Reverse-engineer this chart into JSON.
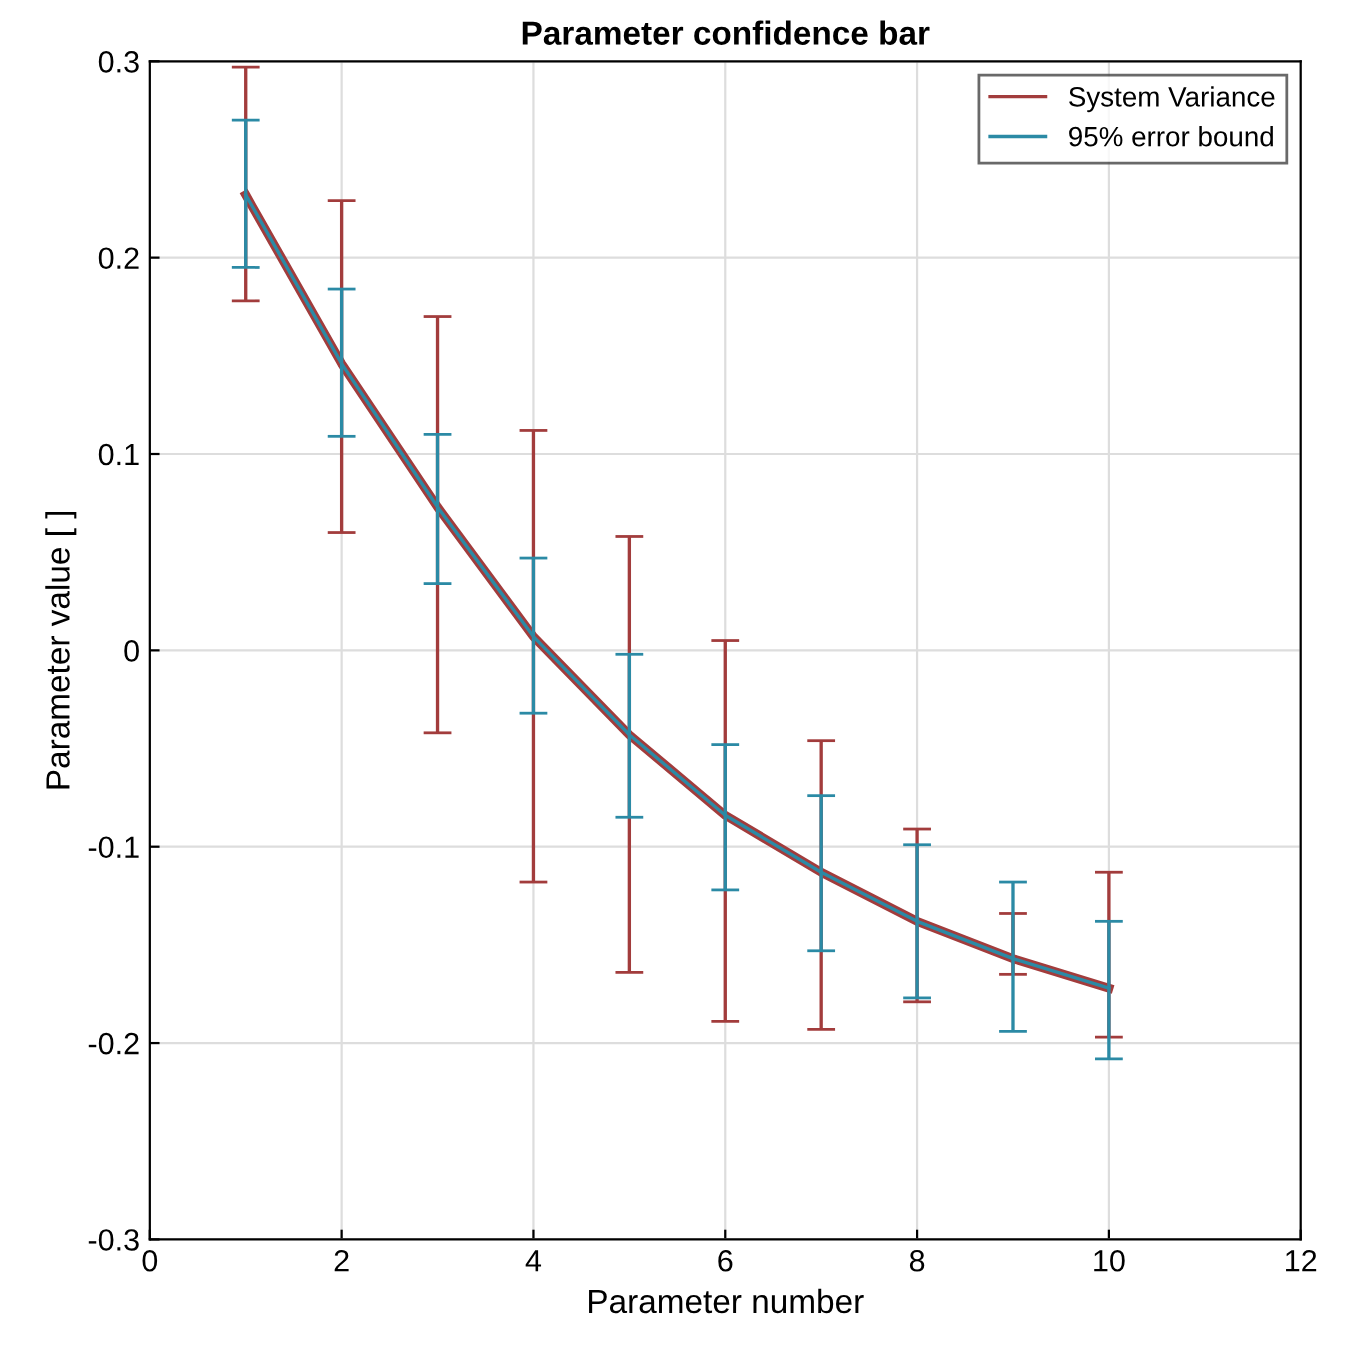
{
  "chart_data": {
    "type": "line",
    "title": "Parameter confidence bar",
    "xlabel": "Parameter number",
    "ylabel": "Parameter value [ ]",
    "x": [
      1,
      2,
      3,
      4,
      5,
      6,
      7,
      8,
      9,
      10
    ],
    "series": [
      {
        "name": "System Variance",
        "color": "#a23c3c",
        "values": [
          0.232,
          0.146,
          0.073,
          0.007,
          -0.043,
          -0.084,
          -0.113,
          -0.138,
          -0.157,
          -0.172
        ],
        "errors": [
          [
            0.178,
            0.297
          ],
          [
            0.06,
            0.229
          ],
          [
            -0.042,
            0.17
          ],
          [
            -0.118,
            0.112
          ],
          [
            -0.164,
            0.058
          ],
          [
            -0.189,
            0.005
          ],
          [
            -0.193,
            -0.046
          ],
          [
            -0.179,
            -0.091
          ],
          [
            -0.165,
            -0.134
          ],
          [
            -0.197,
            -0.113
          ]
        ]
      },
      {
        "name": "95% error bound",
        "color": "#2b8aa5",
        "values": [
          0.232,
          0.146,
          0.073,
          0.007,
          -0.043,
          -0.084,
          -0.113,
          -0.138,
          -0.157,
          -0.172
        ],
        "errors": [
          [
            0.195,
            0.27
          ],
          [
            0.109,
            0.184
          ],
          [
            0.034,
            0.11
          ],
          [
            -0.032,
            0.047
          ],
          [
            -0.085,
            -0.002
          ],
          [
            -0.122,
            -0.048
          ],
          [
            -0.153,
            -0.074
          ],
          [
            -0.177,
            -0.099
          ],
          [
            -0.194,
            -0.118
          ],
          [
            -0.208,
            -0.138
          ]
        ]
      }
    ],
    "xlim": [
      0,
      12
    ],
    "xticks": [
      0,
      2,
      4,
      6,
      8,
      10,
      12
    ],
    "ylim": [
      -0.3,
      0.3
    ],
    "yticks": [
      -0.3,
      -0.2,
      -0.1,
      0,
      0.1,
      0.2,
      0.3
    ],
    "grid": true,
    "legend": "top right",
    "marker": "none",
    "line_style": "solid"
  }
}
